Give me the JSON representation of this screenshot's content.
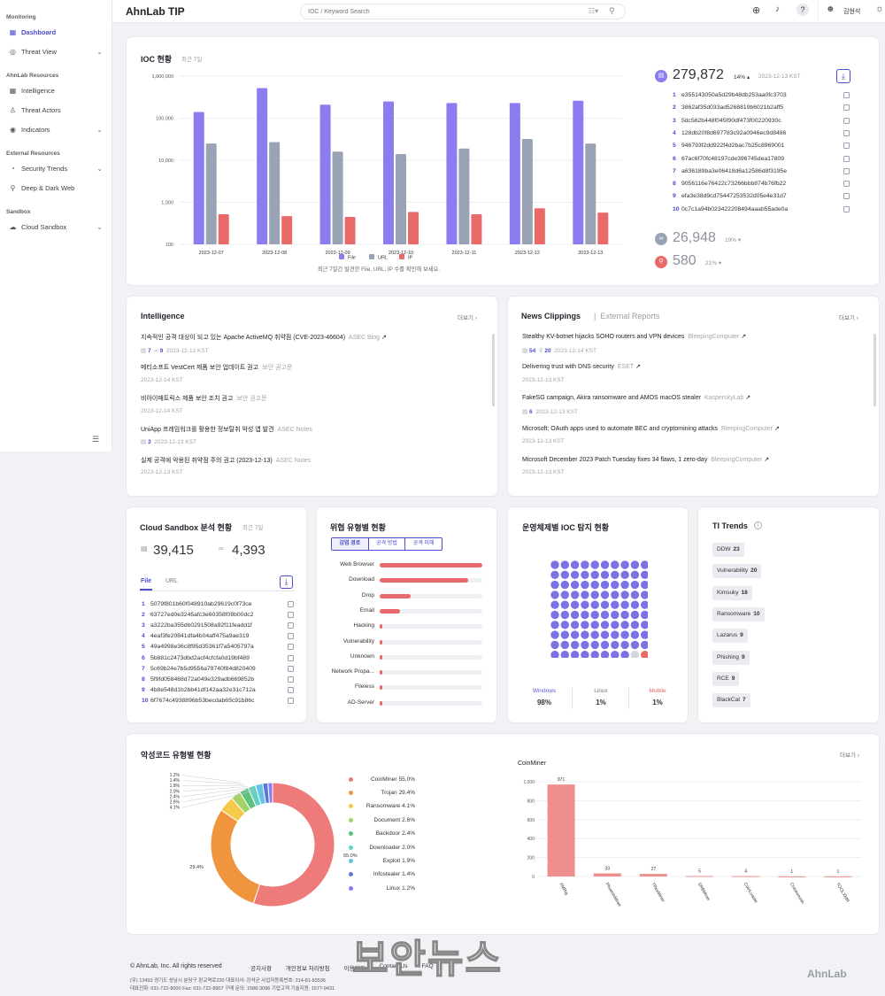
{
  "app": {
    "title": "AhnLab TIP",
    "search_placeholder": "IOC / Keyword Search",
    "user": "김현석"
  },
  "sidebar": {
    "sections": [
      {
        "label": "Monitoring"
      },
      {
        "label": "AhnLab Resources"
      },
      {
        "label": "External Resources"
      },
      {
        "label": "Sandbox"
      }
    ],
    "items": [
      {
        "label": "Dashboard",
        "icon": "grid-icon"
      },
      {
        "label": "Threat View",
        "icon": "target-icon"
      },
      {
        "label": "Intelligence",
        "icon": "grid-icon"
      },
      {
        "label": "Threat Actors",
        "icon": "person-icon"
      },
      {
        "label": "Indicators",
        "icon": "indicator-icon"
      },
      {
        "label": "Security Trends",
        "icon": "trend-icon"
      },
      {
        "label": "Deep & Dark Web",
        "icon": "web-icon"
      },
      {
        "label": "Cloud Sandbox",
        "icon": "cloud-icon"
      }
    ]
  },
  "ioc": {
    "title": "IOC 현황",
    "period": "최근 7일",
    "caption": "최근 7일간 발견한 File, URL, IP 수를 확인해 보세요.",
    "file_total": "279,872",
    "file_pct": "14%",
    "file_date": "2023-12-13 KST",
    "url_total": "26,948",
    "url_pct": "19%",
    "ip_total": "580",
    "ip_pct": "21%",
    "hashes": [
      "e355143050a5d29b48db253aa0fc3703",
      "3862af35d033ad5268819b6021b2aff5",
      "5dc562b448f045f90df473f00220930c",
      "128db20f8d697783c92a0946ec9d8486",
      "946793f2dd922f4d2bac7b25c8969001",
      "67ac6f70fc48197cde396745dea17809",
      "a636189ba3e06418d6a12586d8f3195e",
      "9056116e76422c73266bbb874b76fb22",
      "efa3e38d9cd75447253532d05e4e31d7",
      "0c7c1a94b023422208494aaab55ade0a"
    ]
  },
  "chart_data": [
    {
      "type": "bar",
      "yscale": "log",
      "ylim": [
        100,
        1000000
      ],
      "y_ticks": [
        "1,000,000",
        "100,000",
        "10,000",
        "1,000",
        "100"
      ],
      "categories": [
        "2023-12-07",
        "2023-12-08",
        "2023-12-09",
        "2023-12-10",
        "2023-12-11",
        "2023-12-12",
        "2023-12-13"
      ],
      "series": [
        {
          "name": "File",
          "color": "#8b7cf0",
          "values": [
            140000,
            520000,
            210000,
            250000,
            230000,
            230000,
            260000
          ]
        },
        {
          "name": "URL",
          "color": "#9aa3b5",
          "values": [
            25000,
            27000,
            16000,
            14000,
            19000,
            32000,
            25000
          ]
        },
        {
          "name": "IP",
          "color": "#ea6a6a",
          "values": [
            520,
            470,
            450,
            590,
            520,
            720,
            570
          ]
        }
      ]
    },
    {
      "type": "bar",
      "title": "CoinMiner",
      "ylim": [
        0,
        1000
      ],
      "y_ticks": [
        "1,000",
        "800",
        "600",
        "400",
        "200",
        "0"
      ],
      "categories": [
        "XMRig",
        "PhoenixMiner",
        "TRexMiner",
        "SRBMiner",
        "CoinLoader",
        "Crackonosh",
        "TOOLXMR"
      ],
      "values": [
        971,
        33,
        27,
        5,
        4,
        1,
        1
      ],
      "color": "#ee8f8d"
    },
    {
      "type": "pie",
      "title": "악성코드 유형별 현황",
      "slices": [
        {
          "label": "CoinMiner",
          "value": 55.0,
          "color": "#ee7b79"
        },
        {
          "label": "Trojan",
          "value": 29.4,
          "color": "#f0943e"
        },
        {
          "label": "Ransomware",
          "value": 4.1,
          "color": "#f5c94a"
        },
        {
          "label": "Document",
          "value": 2.6,
          "color": "#a6d368"
        },
        {
          "label": "Backdoor",
          "value": 2.4,
          "color": "#5cc27a"
        },
        {
          "label": "Downloader",
          "value": 2.0,
          "color": "#5fd2c0"
        },
        {
          "label": "Exploit",
          "value": 1.9,
          "color": "#66c4e6"
        },
        {
          "label": "Infostealer",
          "value": 1.4,
          "color": "#5b78d8"
        },
        {
          "label": "Linux",
          "value": 1.2,
          "color": "#8b7cf0"
        }
      ],
      "callouts": [
        "1.2%",
        "1.4%",
        "1.9%",
        "2.0%",
        "2.4%",
        "2.6%",
        "4.1%",
        "29.4%",
        "55.0%"
      ]
    }
  ],
  "intelligence": {
    "title": "Intelligence",
    "more": "더보기",
    "items": [
      {
        "title": "지속적인 공격 대상이 되고 있는 Apache ActiveMQ 취약점 (CVE-2023-46604)",
        "source": "ASEC Blog",
        "meta": "2023-12-13 KST",
        "count1": "7",
        "count2": "9"
      },
      {
        "title": "메티소프트 VestCert 제품 보안 업데이트 권고",
        "source": "보안 권고문",
        "meta": "2023-12-14 KST"
      },
      {
        "title": "비아이매트릭스 제품 보안 조치 권고",
        "source": "보안 권고문",
        "meta": "2023-12-14 KST"
      },
      {
        "title": "UniApp 프레임워크를 활용한 정보탈취 악성 앱 발견",
        "source": "ASEC Notes",
        "meta": "2023-12-13 KST",
        "count1": "3"
      },
      {
        "title": "실제 공격에 악용된 취약점 주의 권고 (2023-12-13)",
        "source": "ASEC Notes",
        "meta": "2023-12-13 KST"
      }
    ]
  },
  "news": {
    "tab1": "News Clippings",
    "tab2": "External Reports",
    "more": "더보기",
    "items": [
      {
        "title": "Stealthy KV-botnet hijacks SOHO routers and VPN devices",
        "source": "BleepingComputer",
        "meta": "2023-12-14 KST",
        "count1": "54",
        "count2": "20"
      },
      {
        "title": "Delivering trust with DNS security",
        "source": "ESET",
        "meta": "2023-12-13 KST"
      },
      {
        "title": "FakeSG campaign, Akira ransomware and AMOS macOS stealer",
        "source": "KasperskyLab",
        "meta": "2023-12-13 KST",
        "count1": "6"
      },
      {
        "title": "Microsoft: OAuth apps used to automate BEC and cryptomining attacks",
        "source": "BleepingComputer",
        "meta": "2023-12-13 KST"
      },
      {
        "title": "Microsoft December 2023 Patch Tuesday fixes 34 flaws, 1 zero-day",
        "source": "BleepingComputer",
        "meta": "2023-12-13 KST"
      }
    ]
  },
  "sandbox": {
    "title": "Cloud Sandbox 분석 현황",
    "period": "최근 7일",
    "file_count": "39,415",
    "url_count": "4,393",
    "tab_file": "File",
    "tab_url": "URL",
    "hashes": [
      "5079f801b60f048910ab29619c0f73ce",
      "63727ed0e3245afc3e60358f08b00dc2",
      "a3222ba355db0291508a92f11feadd1f",
      "4eaf3fe20841dfa4b04aff475a9ae319",
      "49a4998e36c8f95d35361f7a5405797a",
      "5b881c2473dbd2acf4cfcfa0d19bf489",
      "5c69b24e7b5d9556a79740f84d820409",
      "5f9fd058468d72a049e329adb669852b",
      "4b8e548d1b2bb41df142aa32e31c712a",
      "6f7674c4938896b53becdab65c91b86c"
    ]
  },
  "threat_types": {
    "title": "위협 유형별 현황",
    "tabs": [
      "감염 경로",
      "공격 방법",
      "공격 피해"
    ],
    "rows": [
      {
        "label": "Web Browser",
        "value": 1.0
      },
      {
        "label": "Download",
        "value": 0.86
      },
      {
        "label": "Drop",
        "value": 0.3
      },
      {
        "label": "Email",
        "value": 0.2
      },
      {
        "label": "Hacking",
        "value": 0.03
      },
      {
        "label": "Vulnerability",
        "value": 0.03
      },
      {
        "label": "Unknown",
        "value": 0.03
      },
      {
        "label": "Network Propa...",
        "value": 0.02
      },
      {
        "label": "Fileless",
        "value": 0.02
      },
      {
        "label": "AD-Server",
        "value": 0.02
      }
    ]
  },
  "os_ioc": {
    "title": "운영체제별 IOC 탐지 현황",
    "windows_label": "Windows",
    "windows_pct": "98%",
    "linux_label": "Linux",
    "linux_pct": "1%",
    "mobile_label": "Mobile",
    "mobile_pct": "1%",
    "colors": {
      "windows": "#7b72e6",
      "linux": "#d5d7de",
      "mobile": "#ea6a6a"
    }
  },
  "ti_trends": {
    "title": "TI Trends",
    "tags": [
      {
        "name": "DDW",
        "count": "23"
      },
      {
        "name": "Vulnerability",
        "count": "20"
      },
      {
        "name": "Kimsuky",
        "count": "18"
      },
      {
        "name": "Ransomware",
        "count": "10"
      },
      {
        "name": "Lazarus",
        "count": "9"
      },
      {
        "name": "Phishing",
        "count": "9"
      },
      {
        "name": "RCE",
        "count": "9"
      },
      {
        "name": "BlackCat",
        "count": "7"
      }
    ]
  },
  "malware": {
    "title": "악성코드 유형별 현황",
    "more": "더보기"
  },
  "footer": {
    "copyright": "© AhnLab, Inc. All rights reserved",
    "links": [
      "공지사항",
      "개인정보 처리방침",
      "이용약관",
      "Contact Us",
      "FAQ"
    ],
    "address": "(우) 13493 경기도 성남시 분당구 판교역로220  대표이사: 강석균  사업자등록번호: 214-81-83536",
    "phones": "대표전화: 031-722-8000   Fax: 031-722-8907   구매 문의: 1588-3096   기업고객 기술지원: 1577-9431",
    "brand": "AhnLab",
    "watermark": "보안뉴스"
  }
}
